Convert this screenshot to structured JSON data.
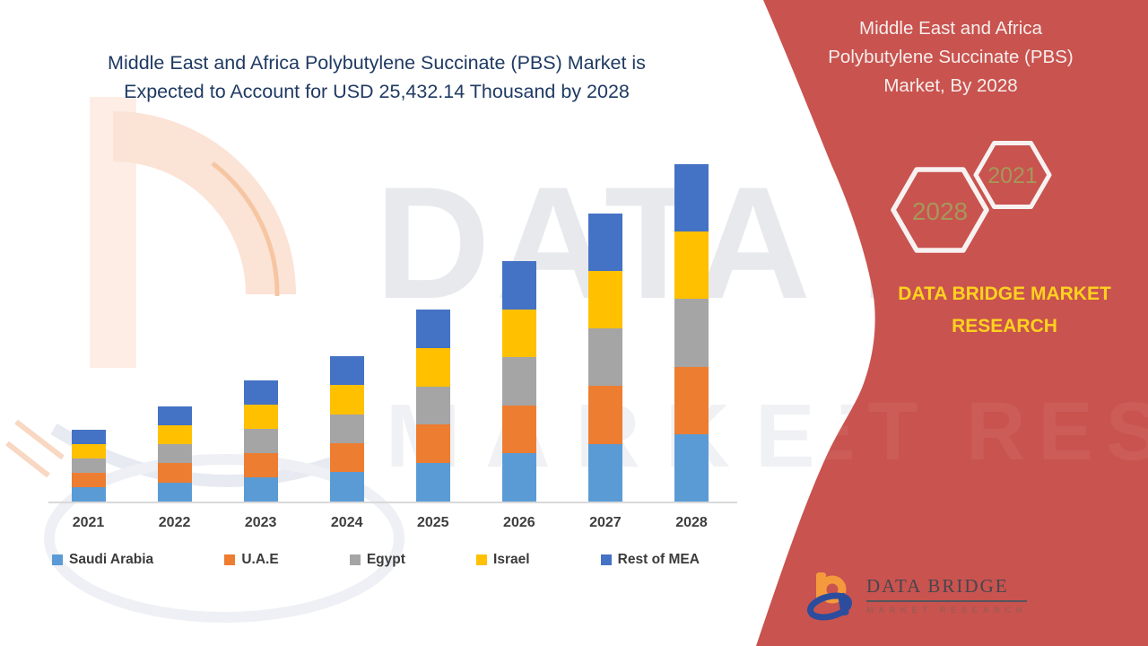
{
  "left_title": {
    "line1": "Middle East and Africa Polybutylene Succinate (PBS) Market is",
    "line2": "Expected to Account for USD 25,432.14 Thousand by 2028"
  },
  "right_panel": {
    "title_line1": "Middle East and Africa",
    "title_line2": "Polybutylene Succinate (PBS)",
    "title_line3": "Market, By 2028",
    "hexagon_back_year": "2021",
    "hexagon_front_year": "2028",
    "caption": "DATA BRIDGE MARKET RESEARCH",
    "colors": {
      "panel_red": "#C9534F",
      "caption_yellow": "#FFD21E",
      "hexagon_year_text": "#A6975A",
      "hexagon_stroke": "#F7F2F1"
    }
  },
  "footer_logo": {
    "brand": "DATA BRIDGE",
    "tagline": "MARKET RESEARCH",
    "icon_orange": "#F49A3D",
    "icon_blue": "#2C4D9E"
  },
  "watermark": {
    "line1": "DATA BRIDGE",
    "line2": "MARKET RESEARCH"
  },
  "chart_data": {
    "type": "bar",
    "stacked": true,
    "title": "Middle East and Africa Polybutylene Succinate (PBS) Market is Expected to Account for USD 25,432.14 Thousand by 2028",
    "unit": "USD Thousand",
    "xlabel": "",
    "ylabel": "",
    "ylim": [
      0,
      25432.14
    ],
    "gridlines": false,
    "legend_position": "bottom",
    "categories": [
      "2021",
      "2022",
      "2023",
      "2024",
      "2025",
      "2026",
      "2027",
      "2028"
    ],
    "series": [
      {
        "name": "Saudi Arabia",
        "color": "#5B9BD5",
        "values": [
          1090,
          1440,
          1830,
          2200,
          2900,
          3630,
          4350,
          5090
        ]
      },
      {
        "name": "U.A.E",
        "color": "#ED7D31",
        "values": [
          1085,
          1435,
          1825,
          2195,
          2895,
          3625,
          4345,
          5086
        ]
      },
      {
        "name": "Egypt",
        "color": "#A5A5A5",
        "values": [
          1080,
          1432,
          1824,
          2190,
          2893,
          3624,
          4340,
          5085
        ]
      },
      {
        "name": "Israel",
        "color": "#FFC000",
        "values": [
          1078,
          1430,
          1822,
          2188,
          2890,
          3622,
          4338,
          5085
        ]
      },
      {
        "name": "Rest of MEA",
        "color": "#4472C4",
        "values": [
          1078,
          1433,
          1830,
          2185,
          2897,
          3627,
          4340,
          5086.14
        ]
      }
    ],
    "totals": [
      5411,
      7170,
      9131,
      10958,
      14475,
      18128,
      21713,
      25432.14
    ]
  }
}
